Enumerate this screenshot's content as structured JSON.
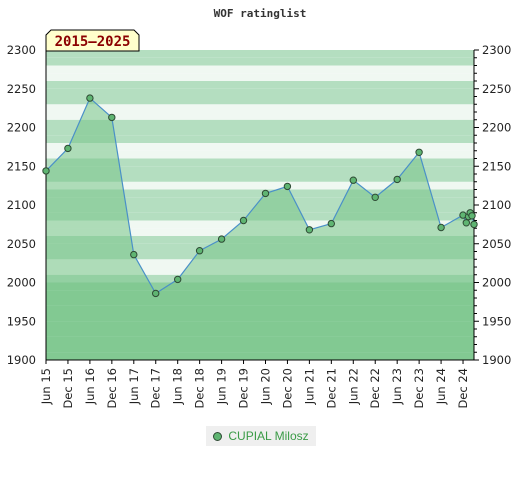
{
  "chart_data": {
    "type": "area",
    "title": "WOF ratinglist",
    "badge": "2015–2025",
    "ylim": [
      1900,
      2300
    ],
    "yticks": [
      1900,
      1950,
      2000,
      2050,
      2100,
      2150,
      2200,
      2250,
      2300
    ],
    "xlim": [
      2015.416,
      2025.166
    ],
    "xticks": [
      {
        "label": "Jun 15",
        "x": 2015.416
      },
      {
        "label": "Dec 15",
        "x": 2015.916
      },
      {
        "label": "Jun 16",
        "x": 2016.416
      },
      {
        "label": "Dec 16",
        "x": 2016.916
      },
      {
        "label": "Jun 17",
        "x": 2017.416
      },
      {
        "label": "Dec 17",
        "x": 2017.916
      },
      {
        "label": "Jun 18",
        "x": 2018.416
      },
      {
        "label": "Dec 18",
        "x": 2018.916
      },
      {
        "label": "Jun 19",
        "x": 2019.416
      },
      {
        "label": "Dec 19",
        "x": 2019.916
      },
      {
        "label": "Jun 20",
        "x": 2020.416
      },
      {
        "label": "Dec 20",
        "x": 2020.916
      },
      {
        "label": "Jun 21",
        "x": 2021.416
      },
      {
        "label": "Dec 21",
        "x": 2021.916
      },
      {
        "label": "Jun 22",
        "x": 2022.416
      },
      {
        "label": "Dec 22",
        "x": 2022.916
      },
      {
        "label": "Jun 23",
        "x": 2023.416
      },
      {
        "label": "Dec 23",
        "x": 2023.916
      },
      {
        "label": "Jun 24",
        "x": 2024.416
      },
      {
        "label": "Dec 24",
        "x": 2024.916
      }
    ],
    "series": [
      {
        "name": "CUPIAL Milosz",
        "points": [
          [
            2015.416,
            2144
          ],
          [
            2015.916,
            2173
          ],
          [
            2016.416,
            2238
          ],
          [
            2016.916,
            2213
          ],
          [
            2017.416,
            2036
          ],
          [
            2017.916,
            1986
          ],
          [
            2018.416,
            2004
          ],
          [
            2018.916,
            2041
          ],
          [
            2019.416,
            2056
          ],
          [
            2019.916,
            2080
          ],
          [
            2020.416,
            2115
          ],
          [
            2020.916,
            2124
          ],
          [
            2021.416,
            2068
          ],
          [
            2021.916,
            2076
          ],
          [
            2022.416,
            2132
          ],
          [
            2022.916,
            2110
          ],
          [
            2023.416,
            2133
          ],
          [
            2023.916,
            2168
          ],
          [
            2024.416,
            2071
          ],
          [
            2024.916,
            2087
          ],
          [
            2024.99,
            2077
          ],
          [
            2025.04,
            2085
          ],
          [
            2025.08,
            2090
          ],
          [
            2025.12,
            2086
          ],
          [
            2025.166,
            2075
          ]
        ]
      }
    ],
    "grid": true,
    "legend_position": "bottom-center"
  },
  "colors": {
    "band_light": "#f0f8f2",
    "band_medium": "#b4dec0",
    "band_dark": "#8fcf9e",
    "area_fill": "#79c489",
    "line": "#4a90c8",
    "marker": "#5fb572",
    "legend_text": "#3a9b46",
    "badge_fill": "#ffffcc",
    "badge_text": "#8b0000"
  }
}
